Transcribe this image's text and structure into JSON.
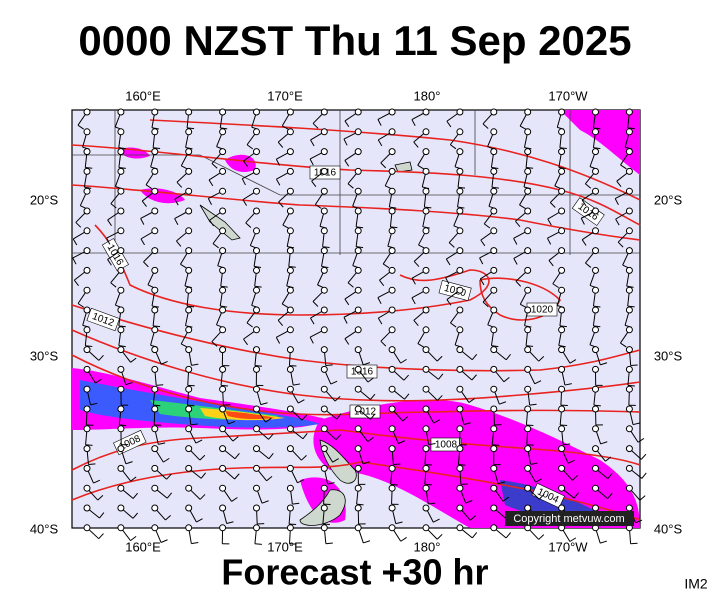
{
  "header": {
    "title": "0000 NZST Thu 11 Sep 2025"
  },
  "map": {
    "lon_labels_top": [
      "160°E",
      "170°E",
      "180°",
      "170°W"
    ],
    "lon_labels_bottom": [
      "160°E",
      "170°E",
      "180°",
      "170°W"
    ],
    "lat_labels_left": [
      "20°S",
      "30°S",
      "40°S"
    ],
    "lat_labels_right": [
      "20°S",
      "30°S",
      "40°S"
    ],
    "isobar_labels": [
      "1016",
      "1016",
      "1016",
      "1012",
      "1020",
      "1020",
      "1016",
      "1012",
      "1008",
      "1008",
      "1004"
    ],
    "copyright": "Copyright metvuw.com"
  },
  "footer": {
    "forecast": "Forecast +30 hr",
    "code": "IM2"
  }
}
